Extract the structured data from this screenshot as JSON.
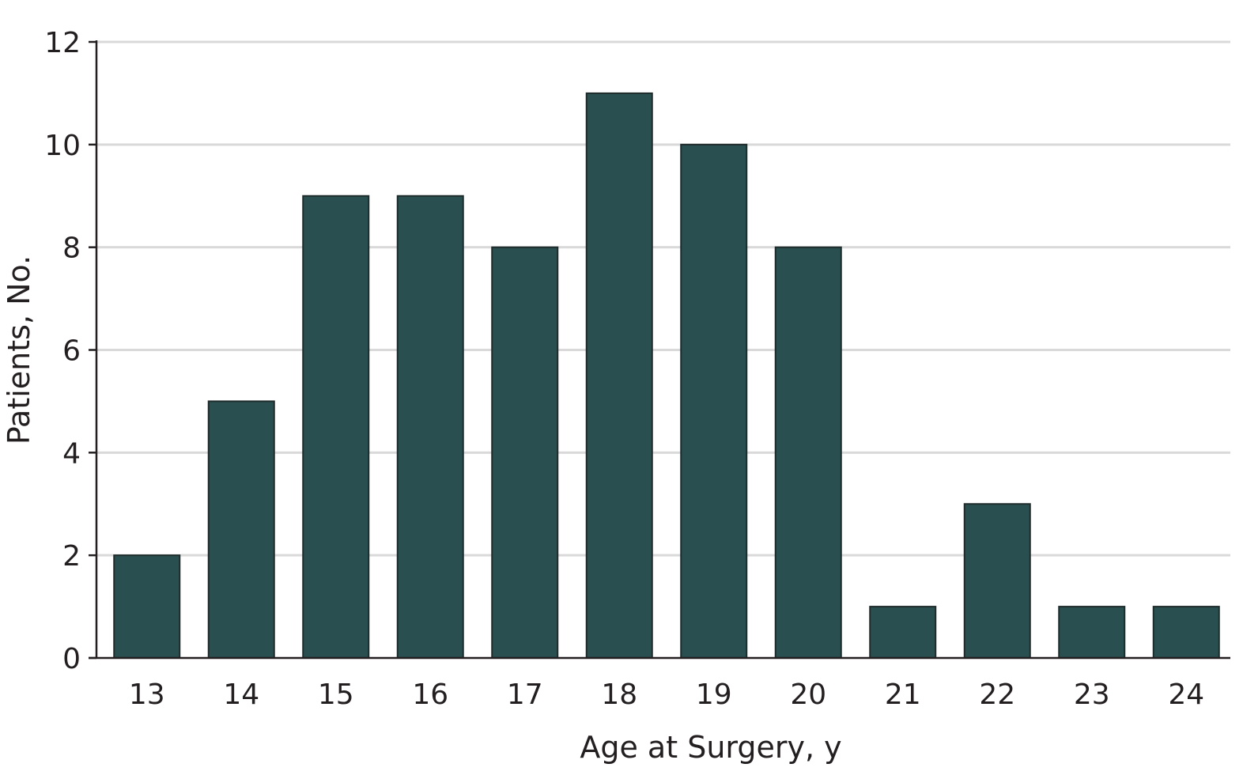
{
  "chart_data": {
    "type": "bar",
    "categories": [
      "13",
      "14",
      "15",
      "16",
      "17",
      "18",
      "19",
      "20",
      "21",
      "22",
      "23",
      "24"
    ],
    "values": [
      2,
      5,
      9,
      9,
      8,
      11,
      10,
      8,
      1,
      3,
      1,
      1
    ],
    "xlabel": "Age at Surgery, y",
    "ylabel": "Patients, No.",
    "ylim": [
      0,
      12
    ],
    "yticks": [
      "0",
      "2",
      "4",
      "6",
      "8",
      "10",
      "12"
    ],
    "grid": true,
    "bar_color": "#2a4f50",
    "bar_edge_color": "#1e2b2b"
  }
}
